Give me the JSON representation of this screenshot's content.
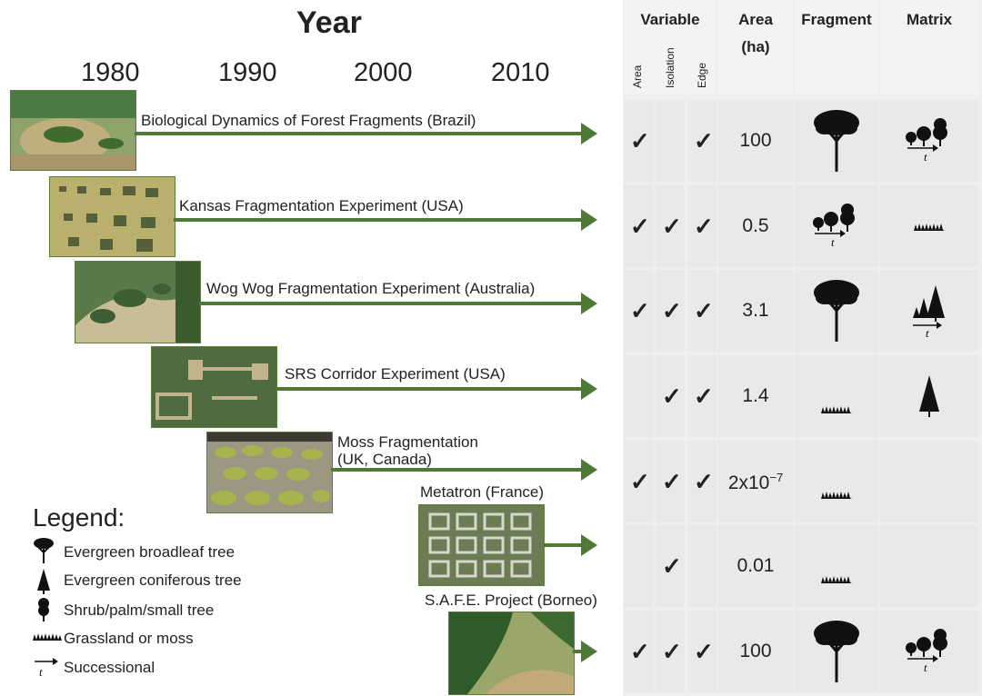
{
  "header": {
    "year_title": "Year",
    "decades": [
      "1980",
      "1990",
      "2000",
      "2010"
    ]
  },
  "table_headers": {
    "variable": "Variable",
    "variable_sub": [
      "Area",
      "Isolation",
      "Edge"
    ],
    "area": "Area",
    "area_unit": "(ha)",
    "fragment": "Fragment",
    "matrix": "Matrix"
  },
  "experiments": [
    {
      "label": "Biological Dynamics of Forest Fragments (Brazil)",
      "checks": [
        true,
        false,
        true
      ],
      "area": "100",
      "fragment": "broadleaf",
      "matrix": "shrub-successional"
    },
    {
      "label": "Kansas Fragmentation Experiment (USA)",
      "checks": [
        true,
        true,
        true
      ],
      "area": "0.5",
      "fragment": "shrub-successional",
      "matrix": "grass"
    },
    {
      "label": "Wog Wog Fragmentation Experiment (Australia)",
      "checks": [
        true,
        true,
        true
      ],
      "area": "3.1",
      "fragment": "broadleaf",
      "matrix": "conifer-successional"
    },
    {
      "label": "SRS Corridor Experiment (USA)",
      "checks": [
        false,
        true,
        true
      ],
      "area": "1.4",
      "fragment": "grass",
      "matrix": "conifer"
    },
    {
      "label": "Moss Fragmentation\n(UK, Canada)",
      "checks": [
        true,
        true,
        true
      ],
      "area_base": "2x10",
      "area_exp": "−7",
      "fragment": "grass",
      "matrix": "none"
    },
    {
      "label": "Metatron (France)",
      "checks": [
        false,
        true,
        false
      ],
      "area": "0.01",
      "fragment": "grass",
      "matrix": "none"
    },
    {
      "label": "S.A.F.E. Project (Borneo)",
      "checks": [
        true,
        true,
        true
      ],
      "area": "100",
      "fragment": "broadleaf",
      "matrix": "shrub-successional"
    }
  ],
  "check_symbol": "✓",
  "successional_t": "t",
  "legend": {
    "title": "Legend:",
    "items": [
      "Evergreen broadleaf tree",
      "Evergreen coniferous tree",
      "Shrub/palm/small tree",
      "Grassland or moss",
      "Successional"
    ]
  },
  "colors": {
    "arrow": "#4f7a36",
    "table_bg": "#efefef",
    "cell_bg": "#e9e9e9"
  }
}
